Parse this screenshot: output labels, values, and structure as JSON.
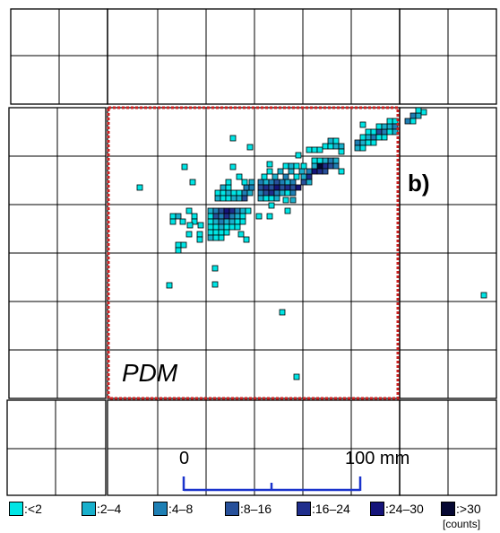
{
  "panel_label": "b)",
  "region_label": "PDM",
  "scale_bar": {
    "start_label": "0",
    "end_label": "100 mm"
  },
  "units_label": "[counts]",
  "legend": [
    {
      "label": ":<2",
      "color": "#00e5e5"
    },
    {
      "label": ":2–4",
      "color": "#19b0cc"
    },
    {
      "label": ":4–8",
      "color": "#1e7fb4"
    },
    {
      "label": ":8–16",
      "color": "#27509a"
    },
    {
      "label": ":16–24",
      "color": "#1f2e8c"
    },
    {
      "label": ":24–30",
      "color": "#15147a"
    },
    {
      "label": ":>30",
      "color": "#060833"
    }
  ],
  "colors": {
    "grid": "#000000",
    "pdm_outline": "#cc2222",
    "scale_bar": "#1a33cc"
  }
}
